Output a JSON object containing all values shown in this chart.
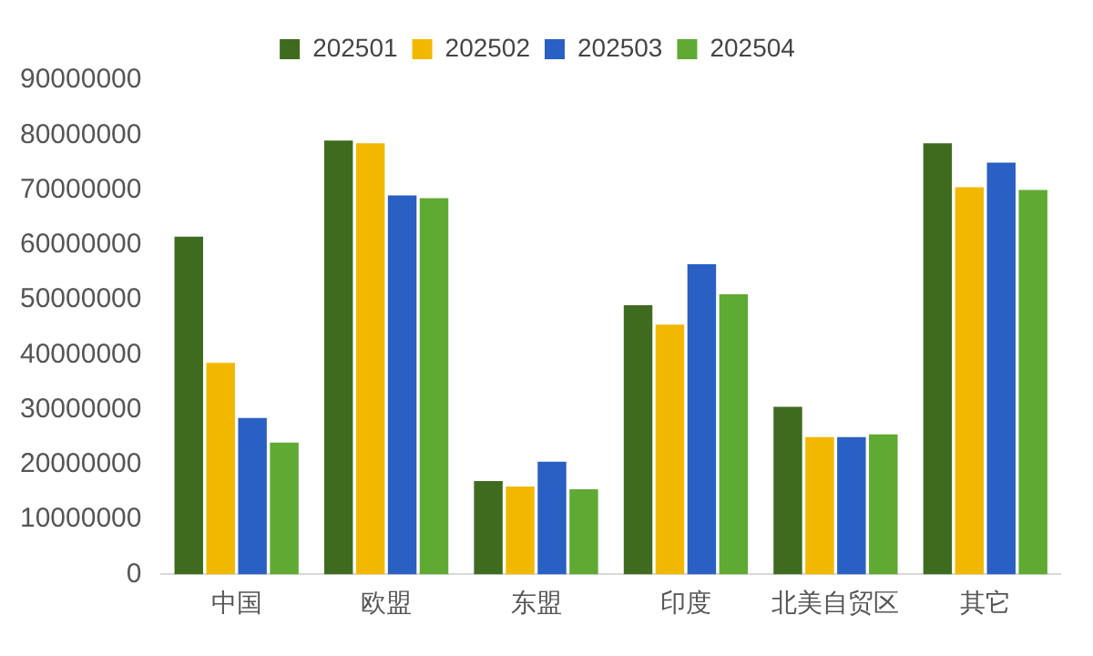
{
  "chart_data": {
    "type": "bar",
    "categories": [
      "中国",
      "欧盟",
      "东盟",
      "印度",
      "北美自贸区",
      "其它"
    ],
    "series": [
      {
        "name": "202501",
        "color": "#3f6b1f",
        "values": [
          61500000,
          79000000,
          17000000,
          49000000,
          30500000,
          78500000
        ]
      },
      {
        "name": "202502",
        "color": "#f2b800",
        "values": [
          38500000,
          78500000,
          16000000,
          45500000,
          25000000,
          70500000
        ]
      },
      {
        "name": "202503",
        "color": "#2a5fc4",
        "values": [
          28500000,
          69000000,
          20500000,
          56500000,
          25000000,
          75000000
        ]
      },
      {
        "name": "202504",
        "color": "#5faa32",
        "values": [
          24000000,
          68500000,
          15500000,
          51000000,
          25500000,
          70000000
        ]
      }
    ],
    "ylim": [
      0,
      90000000
    ],
    "yticks": [
      0,
      10000000,
      20000000,
      30000000,
      40000000,
      50000000,
      60000000,
      70000000,
      80000000,
      90000000
    ],
    "grid": false,
    "legend": "top"
  }
}
